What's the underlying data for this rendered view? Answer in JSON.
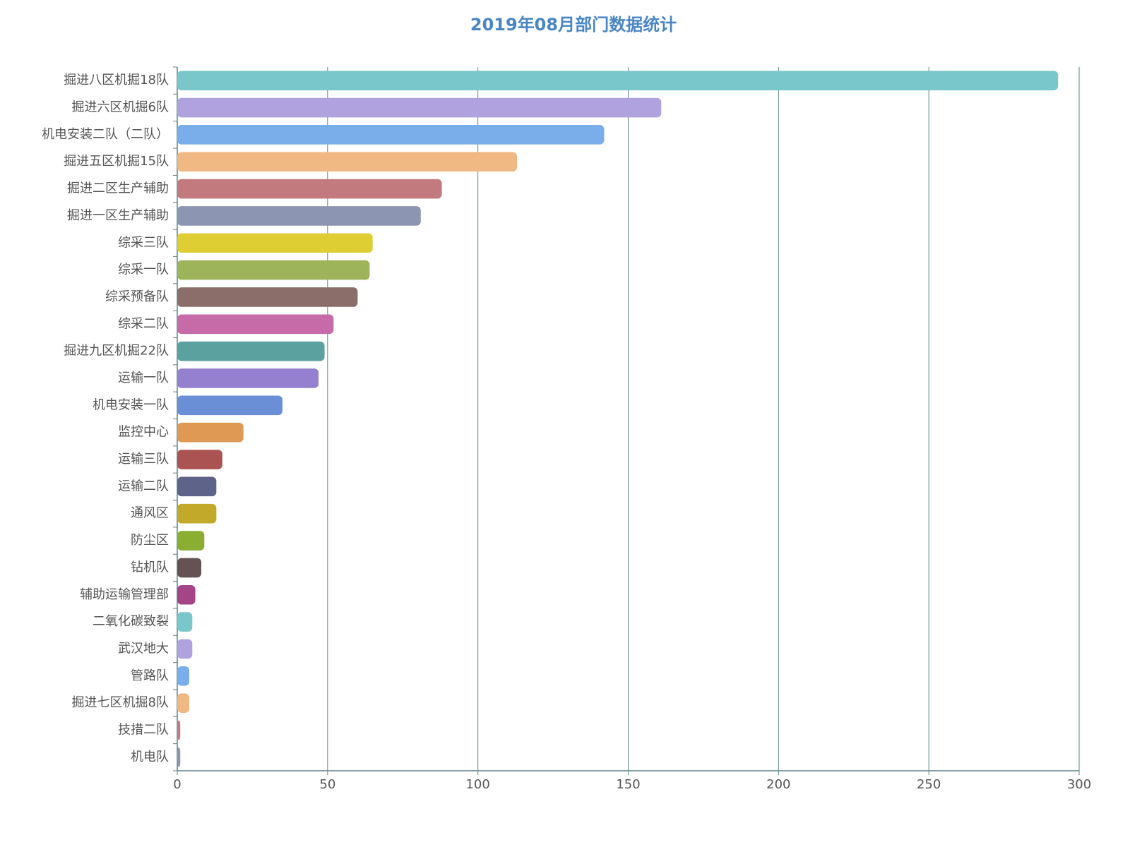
{
  "chart_data": {
    "type": "hbar",
    "title": "2019年08月部门数据统计",
    "categories": [
      "掘进八区机掘18队",
      "掘进六区机掘6队",
      "机电安装二队（二队）",
      "掘进五区机掘15队",
      "掘进二区生产辅助",
      "掘进一区生产辅助",
      "综采三队",
      "综采一队",
      "综采预备队",
      "综采二队",
      "掘进九区机掘22队",
      "运输一队",
      "机电安装一队",
      "监控中心",
      "运输三队",
      "运输二队",
      "通风区",
      "防尘区",
      "钻机队",
      "辅助运输管理部",
      "二氧化碳致裂",
      "武汉地大",
      "管路队",
      "掘进七区机掘8队",
      "技措二队",
      "机电队"
    ],
    "values": [
      293,
      161,
      142,
      113,
      88,
      81,
      65,
      64,
      60,
      52,
      49,
      47,
      35,
      22,
      15,
      13,
      13,
      9,
      8,
      6,
      5,
      5,
      4,
      4,
      1,
      1
    ],
    "colors": [
      "#7ac7cb",
      "#b0a2de",
      "#7aaeea",
      "#f0b984",
      "#c27a7e",
      "#8c95b1",
      "#dece33",
      "#9eb45b",
      "#8b6d6a",
      "#c66aa8",
      "#5aa19f",
      "#9480cf",
      "#6a8fd6",
      "#e09955",
      "#ab5252",
      "#5e6489",
      "#c3a929",
      "#8aae31",
      "#675253",
      "#a64488",
      "#7ac7cb",
      "#b0a2de",
      "#7aaeea",
      "#f0b984",
      "#c27a7e",
      "#8c95b1"
    ],
    "xlim": [
      0,
      300
    ],
    "xticks": [
      0,
      50,
      100,
      150,
      200,
      250,
      300
    ],
    "grid": true
  }
}
